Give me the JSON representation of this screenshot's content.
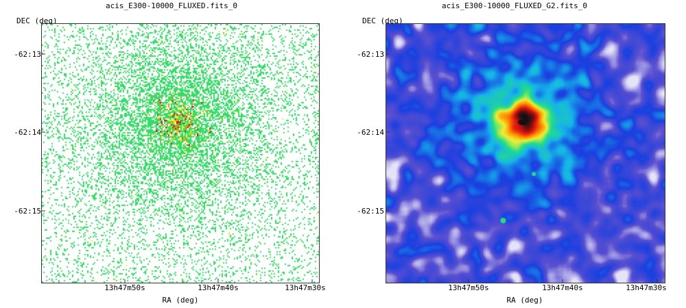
{
  "chart_data": [
    {
      "type": "heatmap",
      "title": "acis_E300-10000_FLUXED.fits_0",
      "xlabel": "RA (deg)",
      "ylabel": "DEC (deg)",
      "x_ticks": [
        "13h47m50s",
        "13h47m40s",
        "13h47m30s"
      ],
      "y_ticks": [
        "-62:13",
        "-62:14",
        "-62:15"
      ],
      "colormap": [
        "#ffffff",
        "#33dd66",
        "#eeee33",
        "#ff8800",
        "#dd1111",
        "#111111"
      ],
      "grid": false
    },
    {
      "type": "heatmap",
      "title": "acis_E300-10000_FLUXED_G2.fits_0",
      "xlabel": "RA (deg)",
      "ylabel": "DEC (deg)",
      "x_ticks": [
        "13h47m50s",
        "13h47m40s",
        "13h47m30s"
      ],
      "y_ticks": [
        "-62:13",
        "-62:14",
        "-62:15"
      ],
      "colormap": [
        "#ffffff",
        "#5a4fd0",
        "#1a3fe0",
        "#16b4ea",
        "#22dd88",
        "#eeee33",
        "#ff8800",
        "#dd1111",
        "#111111"
      ],
      "grid": false
    }
  ]
}
